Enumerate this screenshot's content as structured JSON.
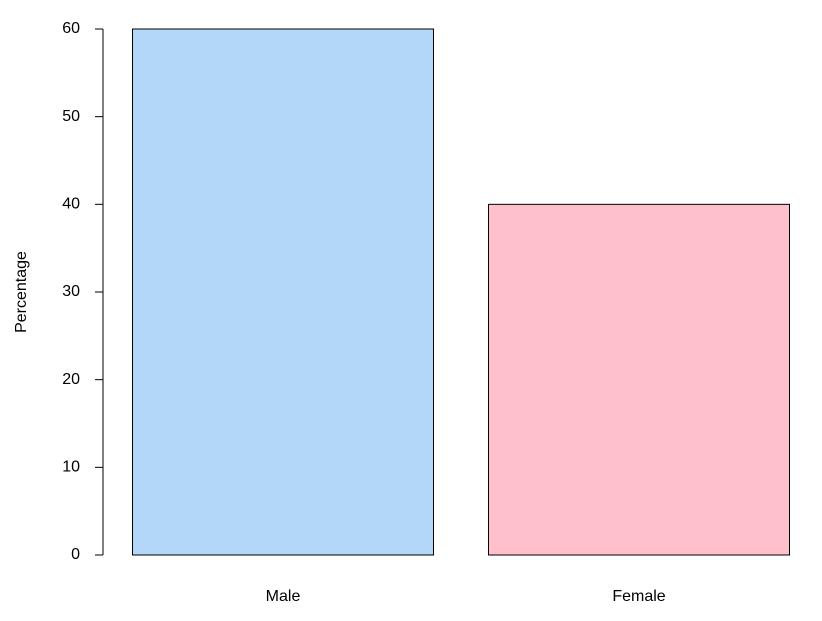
{
  "chart_data": {
    "type": "bar",
    "y_label": "Percentage",
    "categories": [
      "Male",
      "Female"
    ],
    "values": [
      60,
      40
    ],
    "colors": [
      "#b3d7f8",
      "#fec0cb"
    ],
    "ylim": [
      0,
      60
    ],
    "yticks": [
      0,
      10,
      20,
      30,
      40,
      50,
      60
    ]
  }
}
